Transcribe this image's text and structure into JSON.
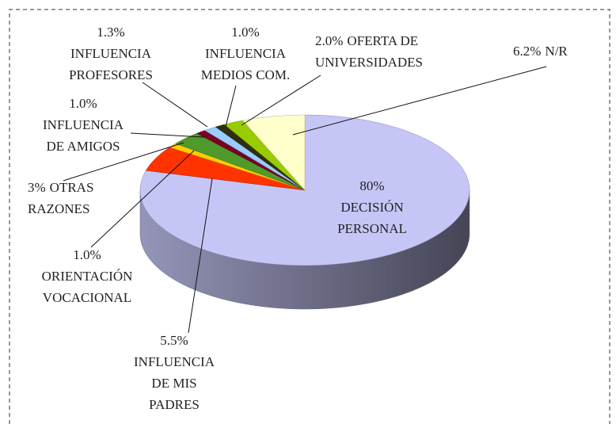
{
  "chart_data": {
    "type": "pie3d",
    "categories": [
      "DECISIÓN PERSONAL",
      "INFLUENCIA DE MIS PADRES",
      "ORIENTACIÓN VOCACIONAL",
      "OTRAS RAZONES",
      "INFLUENCIA DE AMIGOS",
      "INFLUENCIA PROFESORES",
      "INFLUENCIA MEDIOS COM.",
      "OFERTA DE UNIVERSIDADES",
      "N/R"
    ],
    "values": [
      80,
      5.5,
      1.0,
      3,
      1.0,
      1.3,
      1.0,
      2.0,
      6.2
    ],
    "value_labels": [
      "80%",
      "5.5%",
      "1.0%",
      "3%",
      "1.0%",
      "1.3%",
      "1.0%",
      "2.0%",
      "6.2%"
    ],
    "colors": [
      "#c6c6f6",
      "#ff3300",
      "#ffcc00",
      "#4f9a2c",
      "#7a0022",
      "#99ccff",
      "#2e2e10",
      "#99cc00",
      "#ffffcc"
    ]
  }
}
